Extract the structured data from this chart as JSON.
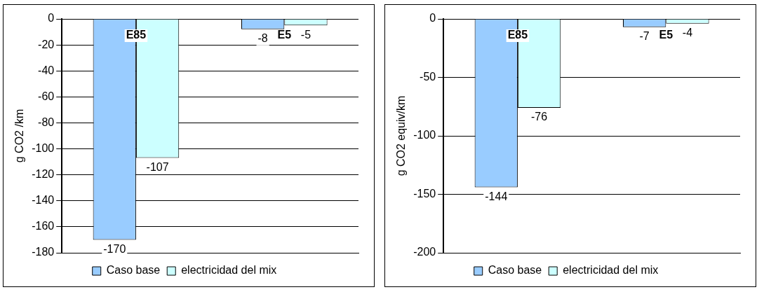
{
  "chart_data": [
    {
      "type": "bar",
      "categories": [
        "E85",
        "E5"
      ],
      "ylabel": "g CO2 /km",
      "ylim": [
        -180,
        0
      ],
      "yticks": [
        -180,
        -160,
        -140,
        -120,
        -100,
        -80,
        -60,
        -40,
        -20,
        0
      ],
      "grid": "y",
      "legend": "bottom",
      "data_labels": true,
      "series": [
        {
          "name": "Caso base",
          "color": "#99ccff",
          "values": [
            -170,
            -8
          ]
        },
        {
          "name": "electricidad del mix",
          "color": "#ccffff",
          "values": [
            -107,
            -5
          ]
        }
      ]
    },
    {
      "type": "bar",
      "categories": [
        "E85",
        "E5"
      ],
      "ylabel": "g CO2 equiv/km",
      "ylim": [
        -200,
        0
      ],
      "yticks": [
        -200,
        -150,
        -100,
        -50,
        0
      ],
      "grid": "y",
      "legend": "bottom",
      "data_labels": true,
      "series": [
        {
          "name": "Caso base",
          "color": "#99ccff",
          "values": [
            -144,
            -7
          ]
        },
        {
          "name": "electricidad del mix",
          "color": "#ccffff",
          "values": [
            -76,
            -4
          ]
        }
      ]
    }
  ]
}
